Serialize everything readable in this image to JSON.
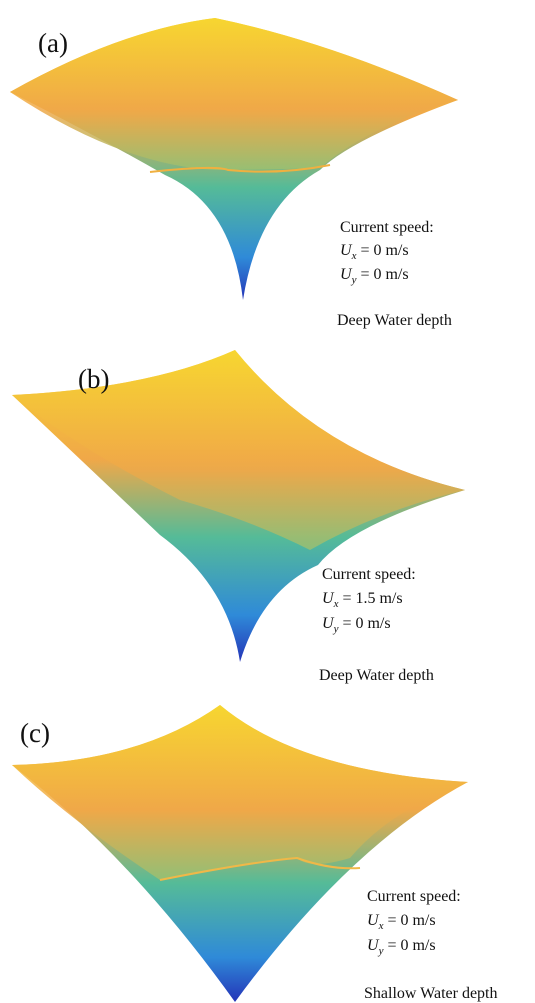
{
  "panels": [
    {
      "label": "(a)",
      "heading": "Current speed:",
      "ux": {
        "symbol": "U",
        "subscript": "x",
        "value": "= 0 m/s"
      },
      "uy": {
        "symbol": "U",
        "subscript": "y",
        "value": "= 0 m/s"
      },
      "depth": "Deep Water depth"
    },
    {
      "label": "(b)",
      "heading": "Current speed:",
      "ux": {
        "symbol": "U",
        "subscript": "x",
        "value": "= 1.5 m/s"
      },
      "uy": {
        "symbol": "U",
        "subscript": "y",
        "value": "= 0 m/s"
      },
      "depth": "Deep Water depth"
    },
    {
      "label": "(c)",
      "heading": "Current speed:",
      "ux": {
        "symbol": "U",
        "subscript": "x",
        "value": "= 0 m/s"
      },
      "uy": {
        "symbol": "U",
        "subscript": "y",
        "value": "= 0 m/s"
      },
      "depth": "Shallow Water depth"
    }
  ]
}
